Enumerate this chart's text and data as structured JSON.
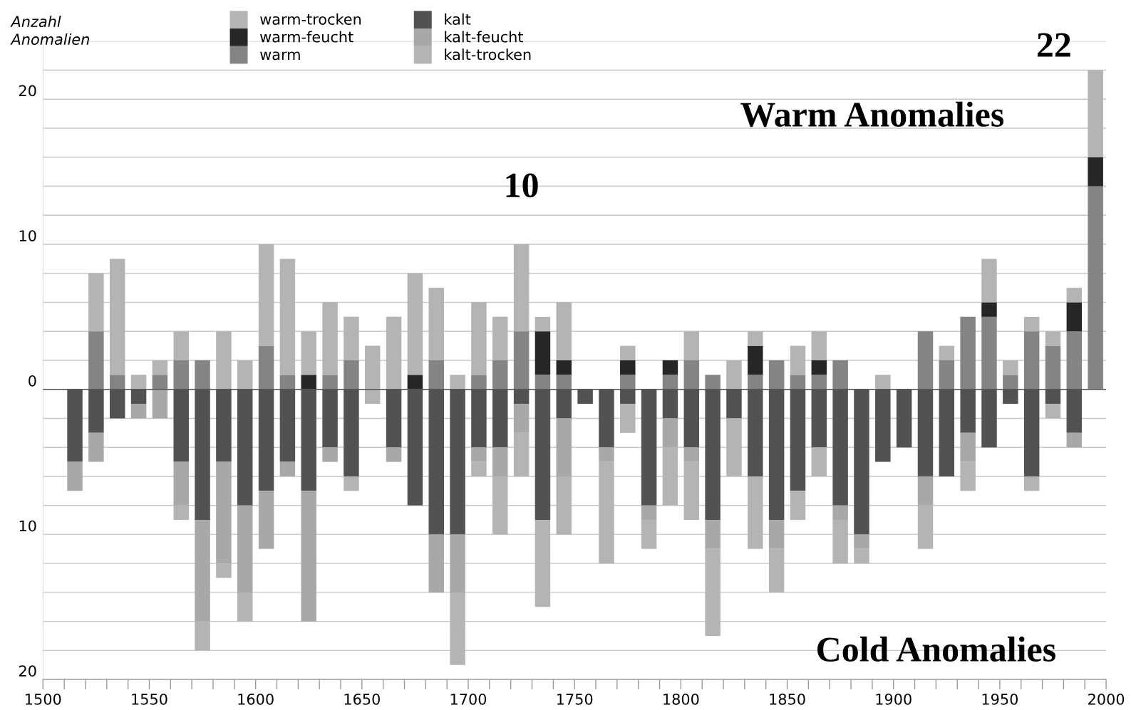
{
  "chart_data": {
    "type": "bar",
    "stacked": true,
    "ylabel": "Anzahl\nAnomalien",
    "x": [
      1515,
      1525,
      1535,
      1545,
      1555,
      1565,
      1575,
      1585,
      1595,
      1605,
      1615,
      1625,
      1635,
      1645,
      1655,
      1665,
      1675,
      1685,
      1695,
      1705,
      1715,
      1725,
      1735,
      1745,
      1755,
      1765,
      1775,
      1785,
      1795,
      1805,
      1815,
      1825,
      1835,
      1845,
      1855,
      1865,
      1875,
      1885,
      1895,
      1905,
      1915,
      1925,
      1935,
      1945,
      1955,
      1965,
      1975,
      1985,
      1995
    ],
    "series": [
      {
        "name": "warm",
        "color": "#848484",
        "values": [
          null,
          4,
          1,
          null,
          1,
          2,
          2,
          null,
          null,
          3,
          1,
          null,
          1,
          2,
          null,
          null,
          null,
          2,
          null,
          1,
          2,
          4,
          1,
          1,
          null,
          null,
          1,
          null,
          1,
          2,
          1,
          null,
          1,
          2,
          1,
          1,
          2,
          null,
          null,
          null,
          4,
          2,
          5,
          5,
          1,
          4,
          3,
          4,
          14
        ]
      },
      {
        "name": "warm-feucht",
        "color": "#262626",
        "values": [
          null,
          null,
          null,
          null,
          null,
          null,
          null,
          null,
          null,
          null,
          null,
          1,
          null,
          null,
          null,
          null,
          1,
          null,
          null,
          null,
          null,
          null,
          3,
          1,
          null,
          null,
          1,
          null,
          1,
          null,
          null,
          null,
          2,
          null,
          null,
          1,
          null,
          null,
          null,
          null,
          null,
          null,
          null,
          1,
          null,
          null,
          null,
          2,
          2
        ]
      },
      {
        "name": "warm-trocken",
        "color": "#b4b4b4",
        "values": [
          null,
          4,
          8,
          1,
          1,
          2,
          null,
          4,
          2,
          7,
          8,
          3,
          5,
          3,
          3,
          5,
          7,
          5,
          1,
          5,
          3,
          6,
          1,
          4,
          null,
          null,
          1,
          null,
          null,
          2,
          null,
          2,
          1,
          null,
          2,
          2,
          null,
          null,
          1,
          null,
          null,
          1,
          null,
          3,
          1,
          1,
          1,
          1,
          6
        ]
      },
      {
        "name": "kalt",
        "color": "#525252",
        "values": [
          -5,
          -3,
          -2,
          -1,
          null,
          -5,
          -9,
          -5,
          -8,
          -7,
          -5,
          -7,
          -4,
          -6,
          null,
          -4,
          -8,
          -10,
          -10,
          -4,
          -4,
          -1,
          -9,
          -2,
          -1,
          -4,
          -1,
          -8,
          -2,
          -4,
          -9,
          -2,
          -6,
          -9,
          -7,
          -4,
          -8,
          -10,
          -5,
          -4,
          -6,
          -6,
          -3,
          -4,
          -1,
          -6,
          -1,
          -3,
          null
        ]
      },
      {
        "name": "kalt-feucht",
        "color": "#a8a8a8",
        "values": [
          -2,
          -2,
          null,
          -1,
          -2,
          -3,
          -7,
          -7,
          -6,
          -4,
          -1,
          -9,
          -1,
          null,
          null,
          -1,
          null,
          -4,
          -4,
          -1,
          -2,
          -2,
          null,
          -4,
          null,
          -1,
          null,
          -1,
          -2,
          -1,
          -2,
          null,
          null,
          -2,
          null,
          null,
          -1,
          -1,
          null,
          null,
          -2,
          null,
          -2,
          null,
          null,
          null,
          null,
          -1,
          null
        ]
      },
      {
        "name": "kalt-trocken",
        "color": "#b4b4b4",
        "values": [
          null,
          null,
          null,
          null,
          null,
          -1,
          -2,
          -1,
          -2,
          null,
          null,
          null,
          null,
          -1,
          -1,
          null,
          null,
          null,
          -5,
          -1,
          -4,
          -3,
          -6,
          -4,
          null,
          -7,
          -2,
          -2,
          -4,
          -4,
          -6,
          -4,
          -5,
          -3,
          -2,
          -2,
          -3,
          -1,
          null,
          null,
          -3,
          null,
          -2,
          null,
          null,
          -1,
          -1,
          null,
          null
        ]
      }
    ],
    "xlim": [
      1500,
      2000
    ],
    "xticks": [
      1500,
      {
        "value": 1510,
        "label": null
      },
      {
        "value": 1520,
        "label": null
      },
      {
        "value": 1530,
        "label": null
      },
      {
        "value": 1540,
        "label": null
      },
      1550,
      {
        "value": 1560,
        "label": null
      },
      {
        "value": 1570,
        "label": null
      },
      {
        "value": 1580,
        "label": null
      },
      {
        "value": 1590,
        "label": null
      },
      1600,
      {
        "value": 1610,
        "label": null
      },
      {
        "value": 1620,
        "label": null
      },
      {
        "value": 1630,
        "label": null
      },
      {
        "value": 1640,
        "label": null
      },
      1650,
      {
        "value": 1660,
        "label": null
      },
      {
        "value": 1670,
        "label": null
      },
      {
        "value": 1680,
        "label": null
      },
      {
        "value": 1690,
        "label": null
      },
      1700,
      {
        "value": 1710,
        "label": null
      },
      {
        "value": 1720,
        "label": null
      },
      {
        "value": 1730,
        "label": null
      },
      {
        "value": 1740,
        "label": null
      },
      1750,
      {
        "value": 1760,
        "label": null
      },
      {
        "value": 1770,
        "label": null
      },
      {
        "value": 1780,
        "label": null
      },
      {
        "value": 1790,
        "label": null
      },
      1800,
      {
        "value": 1810,
        "label": null
      },
      {
        "value": 1820,
        "label": null
      },
      {
        "value": 1830,
        "label": null
      },
      {
        "value": 1840,
        "label": null
      },
      1850,
      {
        "value": 1860,
        "label": null
      },
      {
        "value": 1870,
        "label": null
      },
      {
        "value": 1880,
        "label": null
      },
      {
        "value": 1890,
        "label": null
      },
      1900,
      {
        "value": 1910,
        "label": null
      },
      {
        "value": 1920,
        "label": null
      },
      {
        "value": 1930,
        "label": null
      },
      {
        "value": 1940,
        "label": null
      },
      1950,
      {
        "value": 1960,
        "label": null
      },
      {
        "value": 1970,
        "label": null
      },
      {
        "value": 1980,
        "label": null
      },
      {
        "value": 1990,
        "label": null
      },
      2000
    ],
    "ylim": [
      -20,
      24
    ],
    "yticks": [
      {
        "value": -20,
        "label": "20"
      },
      {
        "value": -18,
        "label": null
      },
      {
        "value": -16,
        "label": null
      },
      {
        "value": -14,
        "label": null
      },
      {
        "value": -12,
        "label": null
      },
      {
        "value": -10,
        "label": "10"
      },
      {
        "value": -8,
        "label": null
      },
      {
        "value": -6,
        "label": null
      },
      {
        "value": -4,
        "label": null
      },
      {
        "value": -2,
        "label": null
      },
      0,
      {
        "value": 2,
        "label": null
      },
      {
        "value": 4,
        "label": null
      },
      {
        "value": 6,
        "label": null
      },
      {
        "value": 8,
        "label": null
      },
      10,
      {
        "value": 12,
        "label": null
      },
      {
        "value": 14,
        "label": null
      },
      {
        "value": 16,
        "label": null
      },
      {
        "value": 18,
        "label": null
      },
      20,
      {
        "value": 22,
        "label": null
      },
      {
        "value": 24,
        "label": null
      }
    ],
    "grid": "y",
    "legend": "top",
    "ref_lines": [
      {
        "axis": "y",
        "value": 0,
        "color": "#555555"
      }
    ],
    "annotations": [
      {
        "text": "22",
        "x": 1995,
        "y": 22
      },
      "Warm Anomalies",
      {
        "text": "10",
        "x": 1725,
        "y": 10
      },
      "Cold Anomalies"
    ]
  }
}
